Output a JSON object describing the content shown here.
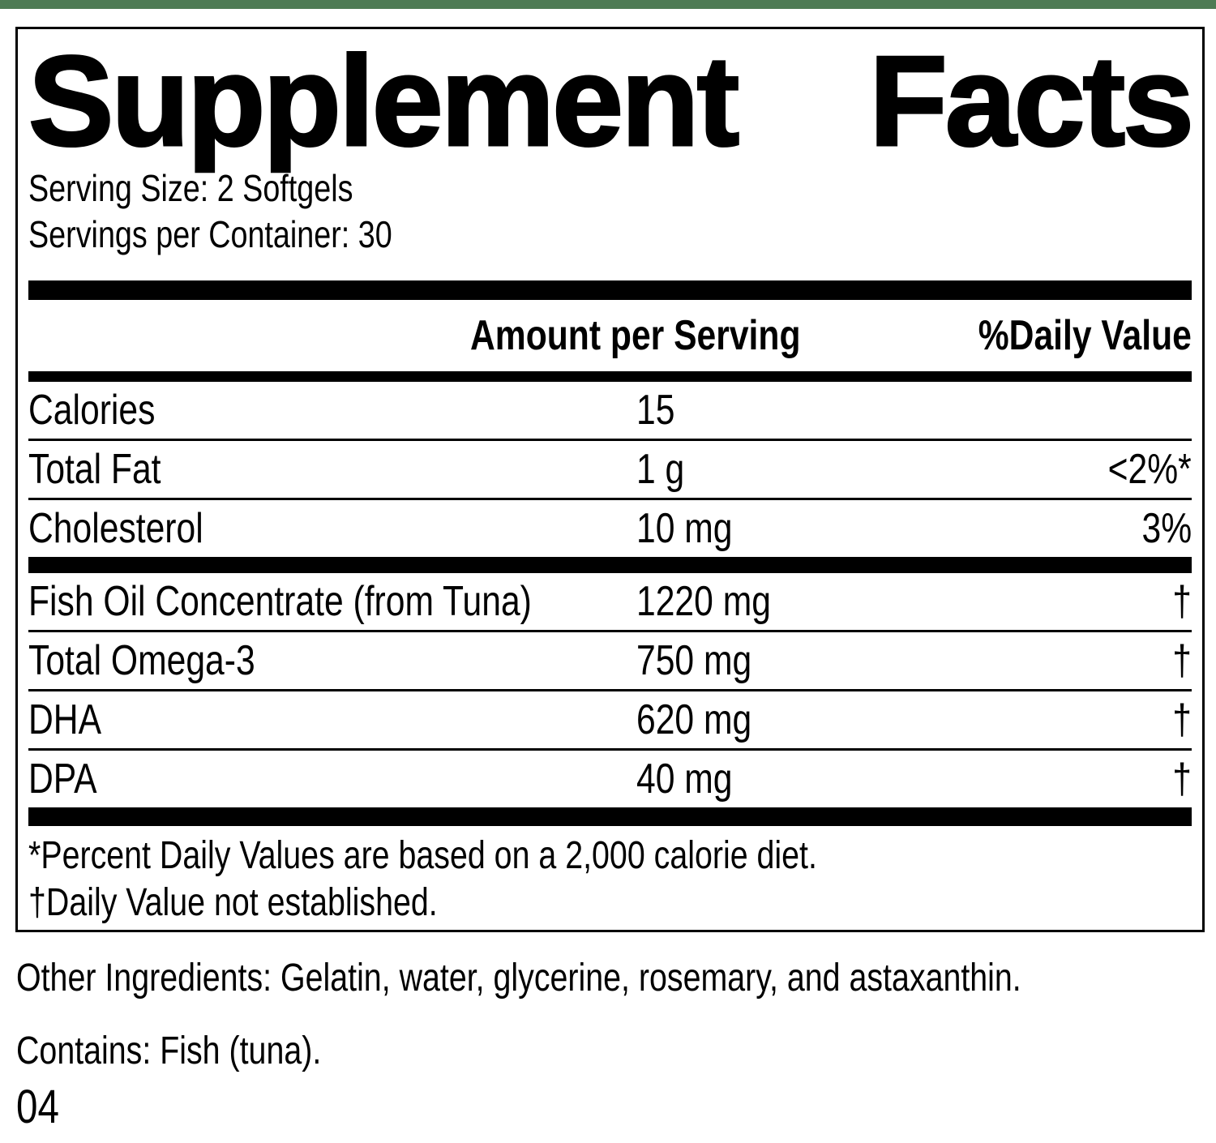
{
  "colors": {
    "top_bar": "#4E7B54",
    "text": "#000000",
    "panel_background": "#FFFFFF"
  },
  "panel": {
    "title": {
      "word1": "Supplement",
      "word2": "Facts"
    },
    "serving_size": "Serving Size: 2 Softgels",
    "servings_per_container": "Servings per Container: 30",
    "header": {
      "amount": "Amount per Serving",
      "dv": "%Daily Value"
    },
    "rows": [
      {
        "label": "Calories",
        "amount": "15",
        "dv": ""
      },
      {
        "label": "Total Fat",
        "amount": "1 g",
        "dv": "<2%*"
      },
      {
        "label": "Cholesterol",
        "amount": "10 mg",
        "dv": "3%"
      },
      {
        "label": "Fish Oil Concentrate (from Tuna)",
        "amount": "1220 mg",
        "dv": "†"
      },
      {
        "label": "Total Omega-3",
        "amount": "750 mg",
        "dv": "†"
      },
      {
        "label": "DHA",
        "amount": "620 mg",
        "dv": "†"
      },
      {
        "label": "DPA",
        "amount": "40 mg",
        "dv": "†"
      }
    ],
    "footnotes": {
      "percent": "*Percent Daily Values are based on a 2,000 calorie diet.",
      "dagger": "†Daily Value not established."
    }
  },
  "below": {
    "other_ingredients": "Other Ingredients: Gelatin, water, glycerine, rosemary, and astaxanthin.",
    "contains": "Contains: Fish (tuna).",
    "code": "04"
  }
}
